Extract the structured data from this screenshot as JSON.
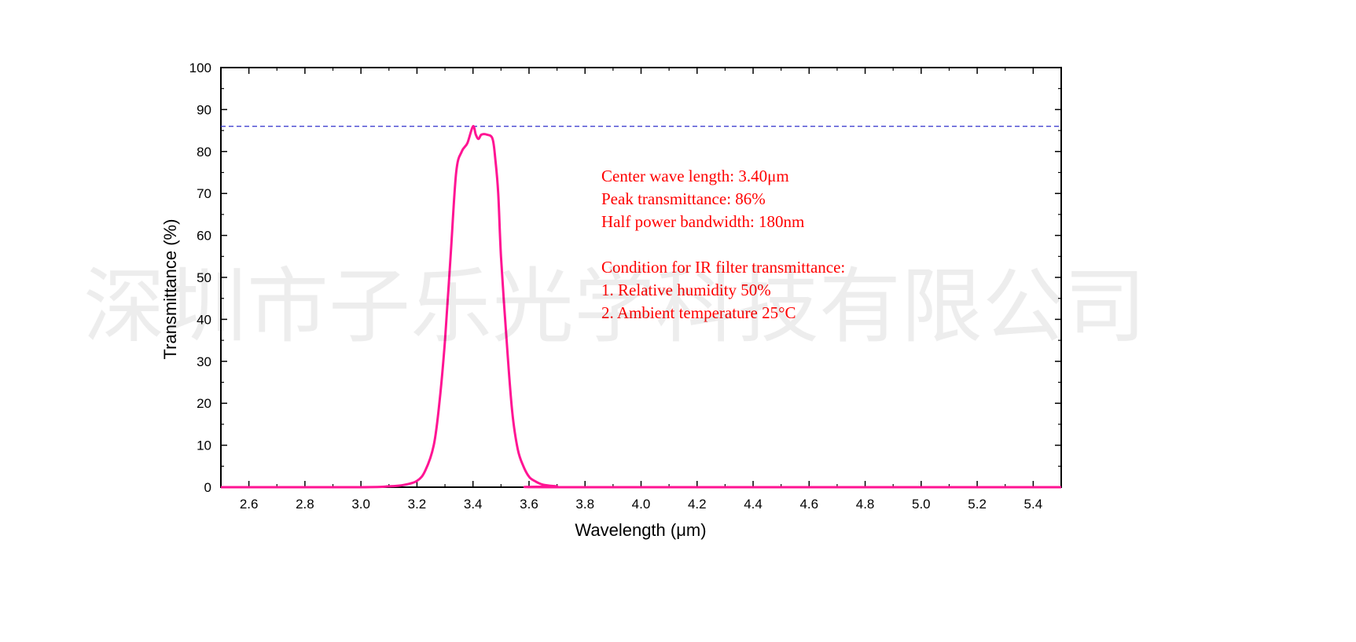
{
  "chart_data": {
    "type": "line",
    "xlabel": "Wavelength (μm)",
    "ylabel": "Transmittance (%)",
    "xlim": [
      2.5,
      5.5
    ],
    "ylim": [
      0,
      100
    ],
    "x_ticks": [
      2.6,
      2.8,
      3.0,
      3.2,
      3.4,
      3.6,
      3.8,
      4.0,
      4.2,
      4.4,
      4.6,
      4.8,
      5.0,
      5.2,
      5.4
    ],
    "x_tick_labels": [
      "2.6",
      "2.8",
      "3.0",
      "3.2",
      "3.4",
      "3.6",
      "3.8",
      "4.0",
      "4.2",
      "4.4",
      "4.6",
      "4.8",
      "5.0",
      "5.2",
      "5.4"
    ],
    "y_ticks": [
      0,
      10,
      20,
      30,
      40,
      50,
      60,
      70,
      80,
      90,
      100
    ],
    "y_tick_labels": [
      "0",
      "10",
      "20",
      "30",
      "40",
      "50",
      "60",
      "70",
      "80",
      "90",
      "100"
    ],
    "grid": false,
    "series": [
      {
        "color": "#ff1493",
        "x": [
          2.5,
          3.0,
          3.1,
          3.15,
          3.2,
          3.23,
          3.26,
          3.28,
          3.3,
          3.32,
          3.34,
          3.36,
          3.38,
          3.4,
          3.41,
          3.42,
          3.43,
          3.45,
          3.47,
          3.48,
          3.49,
          3.5,
          3.52,
          3.54,
          3.56,
          3.58,
          3.6,
          3.62,
          3.65,
          3.7,
          3.72,
          5.5
        ],
        "y": [
          0,
          0,
          0.2,
          0.5,
          1.5,
          4,
          10,
          20,
          35,
          55,
          75,
          80,
          82,
          86,
          84,
          83,
          84,
          84,
          83,
          78,
          70,
          55,
          35,
          18,
          9,
          5,
          2.5,
          1.5,
          0.6,
          0.2,
          0,
          0
        ]
      }
    ],
    "reference_line": {
      "y": 86,
      "color": "#3030cc",
      "style": "dashed"
    },
    "annotations": [
      "Center wave length: 3.40μm",
      "Peak transmittance: 86%",
      "Half power bandwidth: 180nm",
      "",
      "Condition for IR filter transmittance:",
      "1. Relative humidity 50%",
      "2. Ambient temperature 25°C"
    ],
    "annotation_color": "#ff0000"
  },
  "watermark": "深圳市子乐光学科技有限公司"
}
